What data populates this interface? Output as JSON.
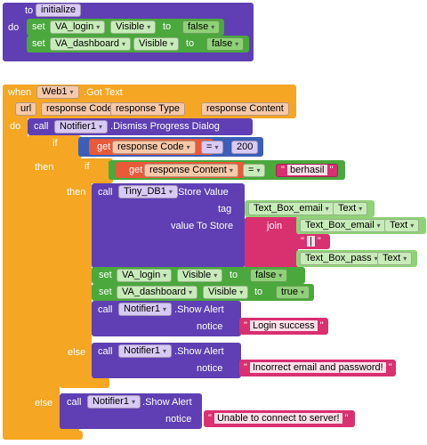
{
  "init": {
    "header_to": "to",
    "header_event": "initialize",
    "do": "do",
    "row1": {
      "set": "set",
      "component": "VA_login",
      "prop": "Visible",
      "to": "to",
      "value": "false"
    },
    "row2": {
      "set": "set",
      "component": "VA_dashboard",
      "prop": "Visible",
      "to": "to",
      "value": "false"
    }
  },
  "handler": {
    "when": "when",
    "component": "Web1",
    "event": "Got Text",
    "params": [
      "url",
      "response Code",
      "response Type",
      "response Content"
    ],
    "do": "do",
    "dismiss": {
      "call": "call",
      "component": "Notifier1",
      "method": "Dismiss Progress Dialog"
    },
    "if1": {
      "if": "if",
      "get": "get",
      "var": "response Code",
      "op": "=",
      "value": "200"
    },
    "then": "then",
    "if2": {
      "if": "if",
      "get": "get",
      "var": "response Content",
      "op": "=",
      "value": "berhasil"
    },
    "store": {
      "call": "call",
      "component": "Tiny_DB1",
      "method": "Store Value",
      "tag_label": "tag",
      "tag_component": "Text_Box_email",
      "tag_prop": "Text",
      "vts_label": "value To Store",
      "join": "join",
      "j1_component": "Text_Box_email",
      "j1_prop": "Text",
      "j2_text": "|",
      "j3_component": "Text_Box_pass",
      "j3_prop": "Text"
    },
    "set_login": {
      "set": "set",
      "component": "VA_login",
      "prop": "Visible",
      "to": "to",
      "value": "false"
    },
    "set_dash": {
      "set": "set",
      "component": "VA_dashboard",
      "prop": "Visible",
      "to": "to",
      "value": "true"
    },
    "alert1": {
      "call": "call",
      "component": "Notifier1",
      "method": "Show Alert",
      "notice": "notice",
      "text": "Login success"
    },
    "else1": "else",
    "alert2": {
      "call": "call",
      "component": "Notifier1",
      "method": "Show Alert",
      "notice": "notice",
      "text": "Incorrect email and password!"
    },
    "else2": "else",
    "alert3": {
      "call": "call",
      "component": "Notifier1",
      "method": "Show Alert",
      "notice": "notice",
      "text": "Unable to connect to server!"
    }
  },
  "colors": {
    "event": "#f5a623",
    "procedure": "#5f3fb3",
    "setter": "#4aa83c",
    "control": "#f5a623",
    "text": "#d93070",
    "logic": "#8fd177"
  }
}
